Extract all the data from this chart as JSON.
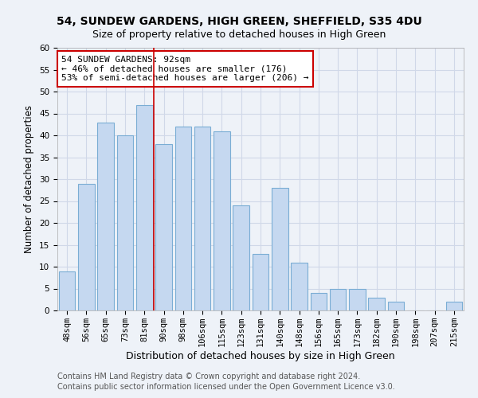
{
  "title": "54, SUNDEW GARDENS, HIGH GREEN, SHEFFIELD, S35 4DU",
  "subtitle": "Size of property relative to detached houses in High Green",
  "xlabel": "Distribution of detached houses by size in High Green",
  "ylabel": "Number of detached properties",
  "categories": [
    "48sqm",
    "56sqm",
    "65sqm",
    "73sqm",
    "81sqm",
    "90sqm",
    "98sqm",
    "106sqm",
    "115sqm",
    "123sqm",
    "131sqm",
    "140sqm",
    "148sqm",
    "156sqm",
    "165sqm",
    "173sqm",
    "182sqm",
    "190sqm",
    "198sqm",
    "207sqm",
    "215sqm"
  ],
  "values": [
    9,
    29,
    43,
    40,
    47,
    38,
    42,
    42,
    41,
    24,
    13,
    28,
    11,
    4,
    5,
    5,
    3,
    2,
    0,
    0,
    2
  ],
  "bar_color": "#c5d8f0",
  "bar_edge_color": "#7aadd4",
  "grid_color": "#d0d8e8",
  "background_color": "#eef2f8",
  "vline_x": 4.5,
  "vline_color": "#cc0000",
  "annotation_text": "54 SUNDEW GARDENS: 92sqm\n← 46% of detached houses are smaller (176)\n53% of semi-detached houses are larger (206) →",
  "annotation_box_color": "#ffffff",
  "annotation_box_edge": "#cc0000",
  "ylim": [
    0,
    60
  ],
  "yticks": [
    0,
    5,
    10,
    15,
    20,
    25,
    30,
    35,
    40,
    45,
    50,
    55,
    60
  ],
  "footer_line1": "Contains HM Land Registry data © Crown copyright and database right 2024.",
  "footer_line2": "Contains public sector information licensed under the Open Government Licence v3.0.",
  "title_fontsize": 10,
  "subtitle_fontsize": 9,
  "xlabel_fontsize": 9,
  "ylabel_fontsize": 8.5,
  "tick_fontsize": 7.5,
  "annotation_fontsize": 8,
  "footer_fontsize": 7
}
